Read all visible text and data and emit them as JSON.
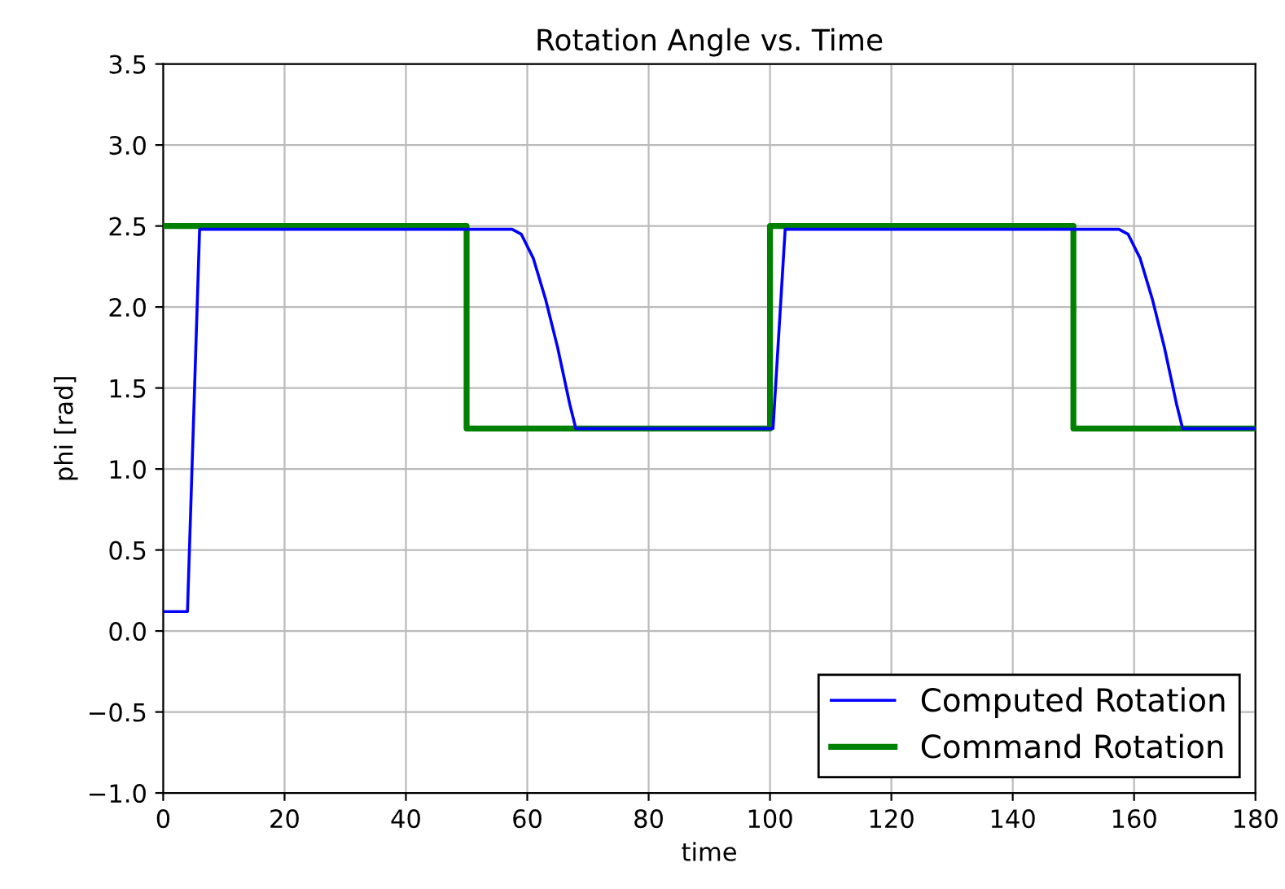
{
  "chart_data": {
    "type": "line",
    "title": "Rotation Angle vs. Time",
    "xlabel": "time",
    "ylabel": "phi [rad]",
    "series": [
      {
        "name": "Computed Rotation",
        "color": "#0000ff",
        "x": [
          0,
          4,
          6,
          57.5,
          59,
          61,
          63,
          65,
          67,
          68,
          100.5,
          102.5,
          157.5,
          159,
          161,
          163,
          165,
          167,
          168,
          180
        ],
        "values": [
          0.12,
          0.12,
          2.48,
          2.48,
          2.45,
          2.3,
          2.05,
          1.75,
          1.4,
          1.25,
          1.25,
          2.48,
          2.48,
          2.45,
          2.3,
          2.05,
          1.75,
          1.4,
          1.25,
          1.25
        ]
      },
      {
        "name": "Command Rotation",
        "color": "#008000",
        "x": [
          0,
          50,
          50,
          100,
          100,
          150,
          150,
          180
        ],
        "values": [
          2.5,
          2.5,
          1.25,
          1.25,
          2.5,
          2.5,
          1.25,
          1.25
        ]
      }
    ],
    "xlim": [
      0,
      180
    ],
    "xticks": [
      0,
      20,
      40,
      60,
      80,
      100,
      120,
      140,
      160,
      180
    ],
    "ylim": [
      -1.0,
      3.5
    ],
    "yticks": [
      {
        "value": -1.0,
        "label": "−1.0"
      },
      {
        "value": -0.5,
        "label": "−0.5"
      },
      {
        "value": 0.0,
        "label": "0.0"
      },
      {
        "value": 0.5,
        "label": "0.5"
      },
      {
        "value": 1.0,
        "label": "1.0"
      },
      {
        "value": 1.5,
        "label": "1.5"
      },
      {
        "value": 2.0,
        "label": "2.0"
      },
      {
        "value": 2.5,
        "label": "2.5"
      },
      {
        "value": 3.0,
        "label": "3.0"
      },
      {
        "value": 3.5,
        "label": "3.5"
      }
    ],
    "grid": true,
    "legend": "bottom right",
    "marker": "none",
    "line_style": "solid"
  }
}
